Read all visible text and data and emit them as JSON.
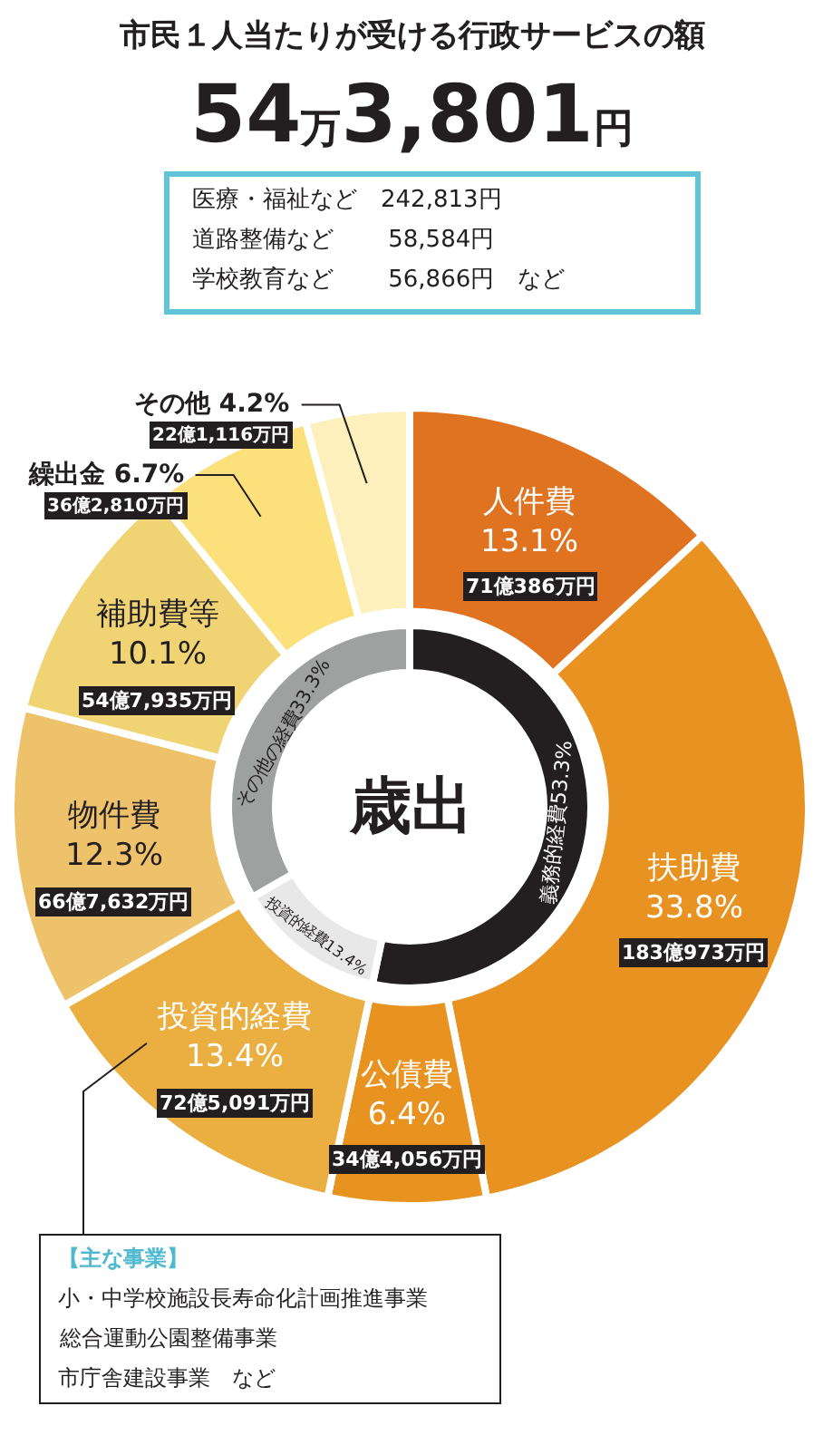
{
  "chart_data": {
    "type": "donut",
    "title": "市民１人当たりが受ける行政サービスの額",
    "subtitle": "54万3,801円",
    "categories": [
      "人件費",
      "扶助費",
      "公債費",
      "投資的経費",
      "物件費",
      "補助費等",
      "繰出金",
      "その他",
      "義務的経費",
      "投資的経費",
      "その他の経費"
    ],
    "series": [
      {
        "values": [
          13.1,
          33.8,
          6.4,
          13.4,
          12.3,
          10.1,
          6.7,
          4.2,
          null,
          null,
          null
        ],
        "colors": [
          "#e07320",
          "#e79221",
          "#e8921f",
          "#ebae40",
          "#eec16b",
          "#f0d474",
          "#fbe07c",
          "#fdf0bc",
          null,
          null,
          null
        ],
        "value_labels": [
          "13.1%",
          "33.8%",
          "6.4%",
          "13.4%",
          "12.3%",
          "10.1%",
          "6.7%",
          "4.2%",
          null,
          null,
          null
        ]
      },
      {
        "values": [
          null,
          null,
          null,
          null,
          null,
          null,
          null,
          null,
          53.3,
          13.4,
          33.3
        ],
        "colors": [
          null,
          null,
          null,
          null,
          null,
          null,
          null,
          null,
          "#231f20",
          "#e8e8e8",
          "#9fa0a0"
        ],
        "value_labels": [
          null,
          null,
          null,
          null,
          null,
          null,
          null,
          null,
          "53.3%",
          "13.4%",
          "33.3%"
        ]
      }
    ],
    "annotations": [
      "医療・福祉など　242,813円",
      "道路整備など　　 58,584円",
      "学校教育など　　 56,866円　など",
      "【主な事業】",
      "小・中学校施設長寿命化計画推進事業",
      "総合運動公園整備事業",
      "市庁舎建設事業　など",
      "歳出",
      {
        "text": "71億386万円",
        "x": "人件費"
      },
      {
        "text": "183億973万円",
        "x": "扶助費"
      },
      {
        "text": "34億4,056万円",
        "x": "公債費"
      },
      {
        "text": "72億5,091万円",
        "x": "投資的経費"
      },
      {
        "text": "66億7,632万円",
        "x": "物件費"
      },
      {
        "text": "54億7,935万円",
        "x": "補助費等"
      },
      {
        "text": "36億2,810万円",
        "x": "繰出金"
      },
      {
        "text": "22億1,116万円",
        "x": "その他"
      }
    ]
  }
}
